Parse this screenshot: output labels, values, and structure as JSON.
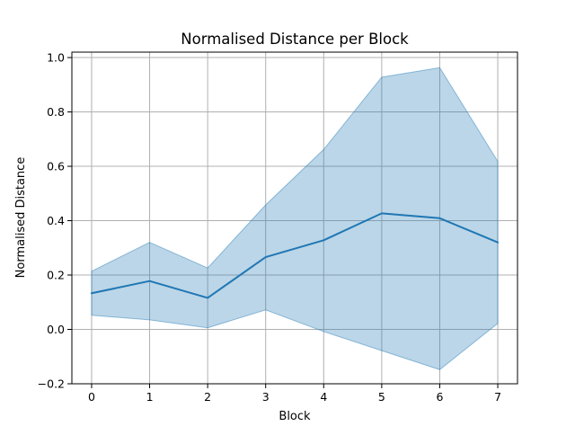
{
  "chart_data": {
    "type": "line",
    "title": "Normalised Distance per Block",
    "xlabel": "Block",
    "ylabel": "Normalised Distance",
    "x": [
      0,
      1,
      2,
      3,
      4,
      5,
      6,
      7
    ],
    "series": [
      {
        "values": [
          0.133,
          0.178,
          0.116,
          0.266,
          0.328,
          0.427,
          0.409,
          0.32
        ],
        "lower": [
          0.052,
          0.035,
          0.006,
          0.072,
          -0.008,
          -0.078,
          -0.148,
          0.022
        ],
        "upper": [
          0.214,
          0.32,
          0.226,
          0.458,
          0.662,
          0.928,
          0.963,
          0.618
        ],
        "color": "#1f77b4",
        "band_color": "#1f77b4",
        "band_opacity": 0.3
      }
    ],
    "xlim": [
      -0.34,
      7.34
    ],
    "ylim": [
      -0.2,
      1.02
    ],
    "xticks": [
      "0",
      "1",
      "2",
      "3",
      "4",
      "5",
      "6",
      "7"
    ],
    "yticks": [
      "−0.2",
      "0.0",
      "0.2",
      "0.4",
      "0.6",
      "0.8",
      "1.0"
    ],
    "ytick_values": [
      -0.2,
      0.0,
      0.2,
      0.4,
      0.6,
      0.8,
      1.0
    ],
    "grid": true
  }
}
